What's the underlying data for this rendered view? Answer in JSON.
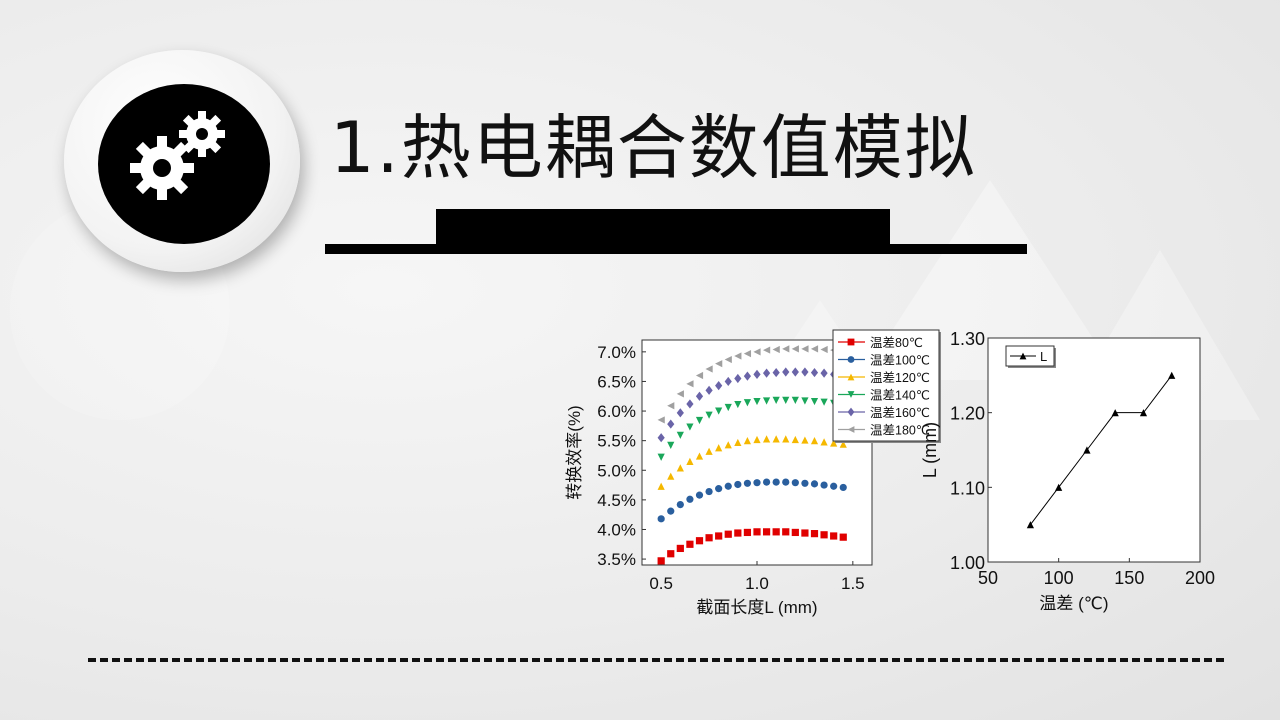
{
  "title": "1.热电耦合数值模拟",
  "icon": "gears-icon",
  "chart_data": [
    {
      "type": "scatter",
      "xlabel": "截面长度L (mm)",
      "ylabel": "转换效率(%)",
      "xlim": [
        0.4,
        1.6
      ],
      "ylim": [
        3.4,
        7.2
      ],
      "xticks": [
        0.5,
        1.0,
        1.5
      ],
      "xtick_labels": [
        "0.5",
        "1.0",
        "1.5"
      ],
      "yticks": [
        3.5,
        4.0,
        4.5,
        5.0,
        5.5,
        6.0,
        6.5,
        7.0
      ],
      "ytick_labels": [
        "3.5%",
        "4.0%",
        "4.5%",
        "5.0%",
        "5.5%",
        "6.0%",
        "6.5%",
        "7.0%"
      ],
      "legend_position": "top-right",
      "x": [
        0.5,
        0.55,
        0.6,
        0.65,
        0.7,
        0.75,
        0.8,
        0.85,
        0.9,
        0.95,
        1.0,
        1.05,
        1.1,
        1.15,
        1.2,
        1.25,
        1.3,
        1.35,
        1.4,
        1.45
      ],
      "series": [
        {
          "name": "温差80℃",
          "color": "#e00000",
          "marker": "square",
          "values": [
            3.47,
            3.59,
            3.68,
            3.75,
            3.81,
            3.86,
            3.89,
            3.92,
            3.94,
            3.95,
            3.96,
            3.96,
            3.96,
            3.96,
            3.95,
            3.94,
            3.93,
            3.91,
            3.89,
            3.87
          ]
        },
        {
          "name": "温差100℃",
          "color": "#2a5f9e",
          "marker": "circle",
          "values": [
            4.18,
            4.31,
            4.42,
            4.51,
            4.58,
            4.64,
            4.69,
            4.73,
            4.76,
            4.78,
            4.79,
            4.8,
            4.8,
            4.8,
            4.79,
            4.78,
            4.77,
            4.75,
            4.73,
            4.71
          ]
        },
        {
          "name": "温差120℃",
          "color": "#f5b800",
          "marker": "triangle-up",
          "values": [
            4.73,
            4.9,
            5.04,
            5.15,
            5.24,
            5.32,
            5.38,
            5.43,
            5.47,
            5.5,
            5.52,
            5.53,
            5.53,
            5.53,
            5.52,
            5.51,
            5.5,
            5.48,
            5.46,
            5.44
          ]
        },
        {
          "name": "温差140℃",
          "color": "#1aa75a",
          "marker": "triangle-down",
          "values": [
            5.22,
            5.42,
            5.59,
            5.73,
            5.84,
            5.93,
            6.0,
            6.06,
            6.11,
            6.14,
            6.16,
            6.17,
            6.18,
            6.18,
            6.18,
            6.17,
            6.16,
            6.15,
            6.13,
            6.11
          ]
        },
        {
          "name": "温差160℃",
          "color": "#6a64a8",
          "marker": "diamond",
          "values": [
            5.55,
            5.78,
            5.97,
            6.12,
            6.25,
            6.35,
            6.43,
            6.5,
            6.55,
            6.59,
            6.62,
            6.64,
            6.65,
            6.66,
            6.66,
            6.66,
            6.65,
            6.64,
            6.62,
            6.6
          ]
        },
        {
          "name": "温差180℃",
          "color": "#a0a0a0",
          "marker": "triangle-left",
          "values": [
            5.85,
            6.09,
            6.29,
            6.46,
            6.6,
            6.71,
            6.8,
            6.87,
            6.93,
            6.97,
            7.0,
            7.03,
            7.04,
            7.05,
            7.05,
            7.05,
            7.05,
            7.04,
            7.03,
            7.01
          ]
        }
      ]
    },
    {
      "type": "line",
      "xlabel": "温差 (℃)",
      "ylabel": "L (mm)",
      "xlim": [
        50,
        200
      ],
      "ylim": [
        1.0,
        1.3
      ],
      "xticks": [
        50,
        100,
        150,
        200
      ],
      "xtick_labels": [
        "50",
        "100",
        "150",
        "200"
      ],
      "yticks": [
        1.0,
        1.1,
        1.2,
        1.3
      ],
      "ytick_labels": [
        "1.00",
        "1.10",
        "1.20",
        "1.30"
      ],
      "legend_position": "top-left",
      "x": [
        80,
        100,
        120,
        140,
        160,
        180
      ],
      "series": [
        {
          "name": "L",
          "color": "#000000",
          "marker": "triangle-up",
          "values": [
            1.05,
            1.1,
            1.15,
            1.2,
            1.2,
            1.25
          ]
        }
      ]
    }
  ]
}
